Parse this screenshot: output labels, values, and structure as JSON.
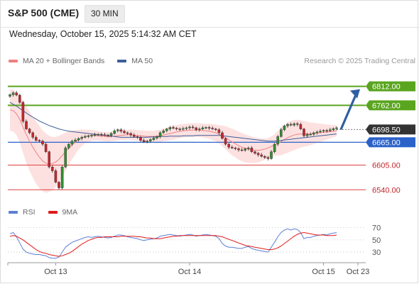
{
  "header": {
    "title": "S&P 500 (CME)",
    "interval": "30 MIN",
    "datetime": "Wednesday, October 15, 2025 5:14:32 AM CET",
    "copyright": "Research © 2025 Trading Central"
  },
  "colors": {
    "candle_up": "#2f8f2f",
    "candle_down": "#c0282f",
    "bollinger_fill": "#fddcdc",
    "ma20": "#f08080",
    "ma50": "#3b5f9a",
    "resistance": "#5aa51f",
    "support": "#e04040",
    "pivot": "#2a62c9",
    "arrow": "#2f5fa3",
    "current_price": "#333333",
    "rsi": "#5b7fd6",
    "rsi_ma": "#e01b1b"
  },
  "chart_data": [
    {
      "type": "candlestick",
      "legend": [
        {
          "name": "MA 20 + Bollinger Bands",
          "color": "#f08080"
        },
        {
          "name": "MA 50",
          "color": "#3b5f9a"
        }
      ],
      "x_ticks": [
        {
          "label": "Oct 13",
          "index": 14
        },
        {
          "label": "Oct 14",
          "index": 55
        },
        {
          "label": "Oct 15",
          "index": 96
        },
        {
          "label": "Oct 23",
          "index": 112
        }
      ],
      "y_range": [
        6520,
        6830
      ],
      "levels": [
        {
          "value": 6812.0,
          "label": "6812.00",
          "kind": "resistance"
        },
        {
          "value": 6762.0,
          "label": "6762.00",
          "kind": "resistance"
        },
        {
          "value": 6698.5,
          "label": "6698.50",
          "kind": "current"
        },
        {
          "value": 6665.0,
          "label": "6665.00",
          "kind": "pivot"
        },
        {
          "value": 6605.0,
          "label": "6605.00",
          "kind": "support"
        },
        {
          "value": 6540.0,
          "label": "6540.00",
          "kind": "support"
        }
      ],
      "forecast_arrow": {
        "from": 6698.5,
        "to": 6812
      },
      "close_prices": [
        6790,
        6795,
        6789,
        6770,
        6720,
        6700,
        6690,
        6678,
        6670,
        6668,
        6660,
        6640,
        6600,
        6590,
        6560,
        6545,
        6600,
        6650,
        6660,
        6668,
        6671,
        6675,
        6678,
        6680,
        6682,
        6683,
        6685,
        6686,
        6685,
        6684,
        6683,
        6688,
        6695,
        6698,
        6694,
        6690,
        6688,
        6684,
        6680,
        6678,
        6670,
        6666,
        6668,
        6672,
        6676,
        6680,
        6690,
        6695,
        6700,
        6704,
        6702,
        6700,
        6699,
        6701,
        6703,
        6705,
        6703,
        6698,
        6700,
        6703,
        6704,
        6702,
        6700,
        6698,
        6690,
        6675,
        6660,
        6652,
        6650,
        6648,
        6645,
        6644,
        6648,
        6650,
        6640,
        6636,
        6632,
        6628,
        6625,
        6622,
        6640,
        6660,
        6680,
        6698,
        6708,
        6712,
        6710,
        6714,
        6712,
        6700,
        6682,
        6686,
        6686,
        6690,
        6692,
        6694,
        6696,
        6695,
        6698,
        6701,
        6703
      ],
      "ma20": [
        6750,
        6748,
        6740,
        6725,
        6705,
        6685,
        6668,
        6652,
        6638,
        6626,
        6616,
        6610,
        6608,
        6609,
        6613,
        6620,
        6630,
        6640,
        6650,
        6658,
        6665,
        6672,
        6677,
        6680,
        6682,
        6683,
        6683,
        6682,
        6681,
        6680,
        6679,
        6680,
        6681,
        6682,
        6683,
        6684,
        6685,
        6685,
        6684,
        6683,
        6682,
        6681,
        6680,
        6680,
        6680,
        6681,
        6682,
        6684,
        6686,
        6688,
        6690,
        6692,
        6694,
        6695,
        6696,
        6697,
        6697,
        6697,
        6697,
        6696,
        6695,
        6694,
        6692,
        6690,
        6686,
        6682,
        6677,
        6671,
        6666,
        6661,
        6656,
        6652,
        6649,
        6647,
        6645,
        6644,
        6644,
        6645,
        6647,
        6650,
        6654,
        6658,
        6662,
        6667,
        6672,
        6677,
        6681,
        6684,
        6686,
        6687,
        6687,
        6687,
        6687,
        6688,
        6689,
        6690,
        6691,
        6692,
        6693,
        6694,
        6695
      ],
      "ma50": [
        6770,
        6765,
        6760,
        6754,
        6748,
        6742,
        6736,
        6731,
        6726,
        6721,
        6717,
        6713,
        6709,
        6706,
        6703,
        6700,
        6698,
        6696,
        6694,
        6693,
        6692,
        6691,
        6690,
        6689,
        6688,
        6687,
        6686,
        6685,
        6684,
        6683,
        6682,
        6681,
        6680,
        6679,
        6678,
        6678,
        6678,
        6678,
        6678,
        6678,
        6678,
        6678,
        6678,
        6679,
        6679,
        6679,
        6680,
        6680,
        6680,
        6681,
        6681,
        6681,
        6681,
        6682,
        6682,
        6682,
        6682,
        6683,
        6683,
        6683,
        6683,
        6683,
        6683,
        6683,
        6683,
        6682,
        6681,
        6680,
        6679,
        6678,
        6677,
        6676,
        6675,
        6674,
        6673,
        6672,
        6671,
        6670,
        6669,
        6668,
        6668,
        6668,
        6669,
        6670,
        6671,
        6672,
        6673,
        6674,
        6675,
        6676,
        6677,
        6678,
        6679,
        6680,
        6681,
        6682,
        6683,
        6684,
        6685,
        6686,
        6687
      ],
      "bollinger_width": [
        55,
        55,
        56,
        60,
        68,
        74,
        78,
        80,
        82,
        82,
        80,
        78,
        74,
        70,
        66,
        62,
        56,
        50,
        44,
        38,
        32,
        26,
        22,
        18,
        16,
        14,
        13,
        12,
        12,
        12,
        12,
        12,
        12,
        12,
        12,
        13,
        13,
        14,
        14,
        14,
        14,
        15,
        15,
        15,
        15,
        16,
        16,
        16,
        17,
        17,
        18,
        18,
        18,
        18,
        18,
        18,
        18,
        18,
        18,
        18,
        19,
        20,
        21,
        22,
        24,
        27,
        30,
        33,
        35,
        36,
        37,
        37,
        37,
        36,
        35,
        34,
        32,
        30,
        28,
        26,
        26,
        28,
        32,
        36,
        38,
        40,
        40,
        40,
        38,
        36,
        34,
        32,
        30,
        28,
        26,
        24,
        22,
        20,
        18,
        16,
        15
      ]
    },
    {
      "type": "line",
      "legend": [
        {
          "name": "RSI",
          "color": "#5b7fd6"
        },
        {
          "name": "9MA",
          "color": "#e01b1b"
        }
      ],
      "y_range": [
        15,
        80
      ],
      "y_ticks": [
        70,
        50,
        30
      ],
      "rsi": [
        60,
        62,
        55,
        45,
        35,
        30,
        28,
        27,
        26,
        26,
        25,
        24,
        21,
        20,
        20,
        22,
        30,
        38,
        42,
        46,
        48,
        50,
        52,
        54,
        55,
        54,
        55,
        56,
        55,
        54,
        53,
        54,
        56,
        58,
        58,
        57,
        55,
        54,
        53,
        52,
        50,
        49,
        50,
        51,
        52,
        53,
        56,
        57,
        58,
        59,
        58,
        57,
        56,
        57,
        58,
        59,
        58,
        56,
        57,
        58,
        59,
        58,
        57,
        56,
        52,
        44,
        40,
        38,
        38,
        37,
        36,
        36,
        38,
        39,
        36,
        34,
        33,
        32,
        31,
        30,
        38,
        46,
        55,
        62,
        66,
        68,
        66,
        68,
        67,
        62,
        52,
        54,
        54,
        56,
        57,
        58,
        59,
        58,
        60,
        61,
        62
      ],
      "rsi_ma": [
        56,
        57,
        56,
        53,
        50,
        46,
        42,
        38,
        34,
        31,
        29,
        28,
        26,
        25,
        24,
        23,
        24,
        26,
        28,
        31,
        35,
        39,
        43,
        46,
        49,
        51,
        53,
        54,
        54,
        55,
        55,
        55,
        55,
        55,
        56,
        56,
        56,
        56,
        56,
        55,
        55,
        54,
        53,
        53,
        52,
        52,
        52,
        53,
        54,
        55,
        56,
        56,
        57,
        57,
        57,
        57,
        57,
        57,
        57,
        57,
        57,
        57,
        57,
        57,
        56,
        55,
        53,
        51,
        49,
        47,
        45,
        43,
        41,
        40,
        39,
        38,
        37,
        36,
        35,
        34,
        34,
        35,
        37,
        40,
        44,
        48,
        52,
        56,
        59,
        61,
        62,
        61,
        60,
        59,
        58,
        58,
        58,
        57,
        57,
        57,
        58
      ]
    }
  ]
}
